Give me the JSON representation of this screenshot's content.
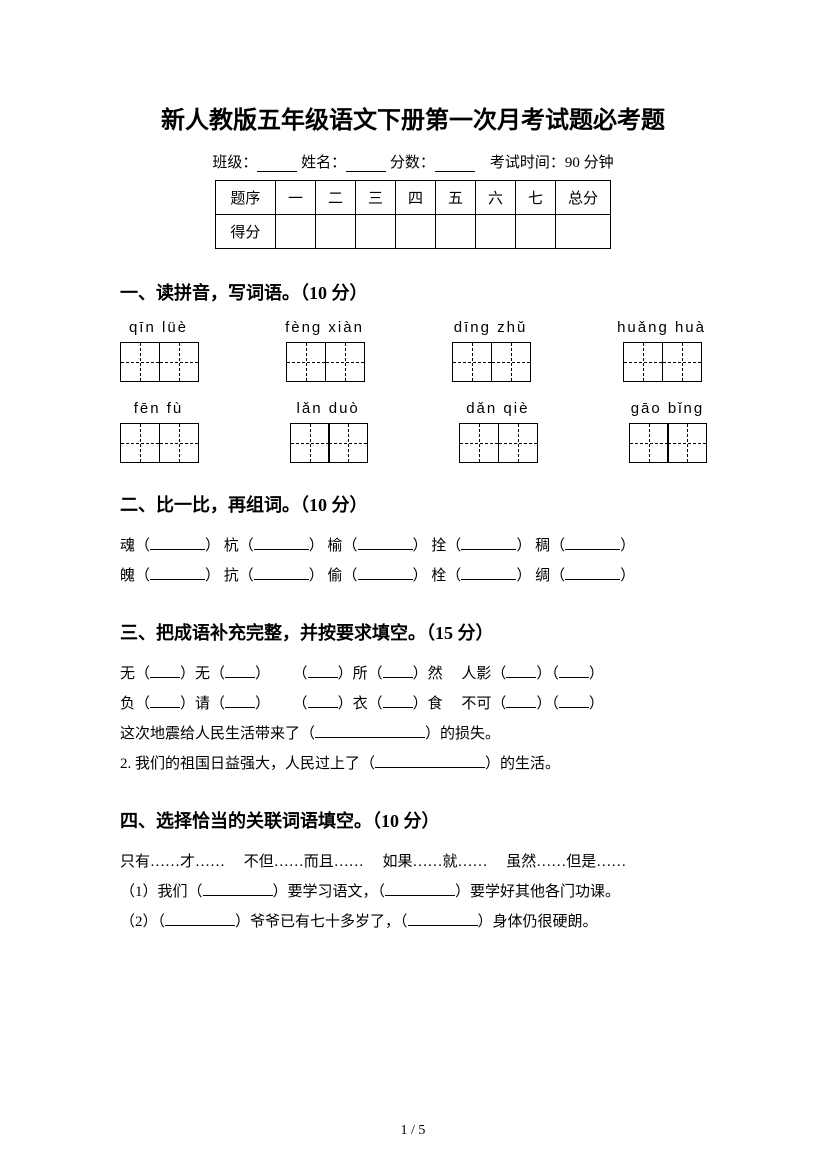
{
  "title": "新人教版五年级语文下册第一次月考试题必考题",
  "info": {
    "class_label": "班级：",
    "name_label": "姓名：",
    "score_label": "分数：",
    "exam_time": "考试时间：90 分钟"
  },
  "score_table": {
    "headers": [
      "题序",
      "一",
      "二",
      "三",
      "四",
      "五",
      "六",
      "七",
      "总分"
    ],
    "row2_label": "得分"
  },
  "section1": {
    "heading": "一、读拼音，写词语。（10 分）",
    "row1": [
      "qīn   lüè",
      "fèng   xiàn",
      "dīng   zhǔ",
      "huǎng   huà"
    ],
    "row2": [
      "fēn   fù",
      "lǎn   duò",
      "dǎn   qiè",
      "gāo   bǐng"
    ]
  },
  "section2": {
    "heading": "二、比一比，再组词。（10 分）",
    "line1": {
      "c1": "魂（",
      "c2": "） 杭（",
      "c3": "） 榆（",
      "c4": "） 拴（",
      "c5": "） 稠（",
      "c6": "）"
    },
    "line2": {
      "c1": "魄（",
      "c2": "） 抗（",
      "c3": "） 偷（",
      "c4": "） 栓（",
      "c5": "） 绸（",
      "c6": "）"
    }
  },
  "section3": {
    "heading": "三、把成语补充完整，并按要求填空。（15 分）",
    "line1": {
      "a": "无（",
      "b": "）无（",
      "c": "）",
      "d": "（",
      "e": "）所（",
      "f": "）然",
      "g": "人影（",
      "h": "）（",
      "i": "）"
    },
    "line2": {
      "a": "负（",
      "b": "）请（",
      "c": "）",
      "d": "（",
      "e": "）衣（",
      "f": "）食",
      "g": "不可（",
      "h": "）（",
      "i": "）"
    },
    "sentence1": {
      "pre": "这次地震给人民生活带来了（",
      "post": "）的损失。"
    },
    "sentence2": {
      "pre": "2. 我们的祖国日益强大，人民过上了（",
      "post": "）的生活。"
    }
  },
  "section4": {
    "heading": "四、选择恰当的关联词语填空。（10 分）",
    "options": "只有……才……　 不但……而且……　 如果……就……　 虽然……但是……",
    "q1": {
      "a": "（1）我们（",
      "b": "）要学习语文，（",
      "c": "）要学好其他各门功课。"
    },
    "q2": {
      "a": "（2）（",
      "b": "）爷爷已有七十多岁了，（",
      "c": "）身体仍很硬朗。"
    }
  },
  "page_num": "1 / 5"
}
